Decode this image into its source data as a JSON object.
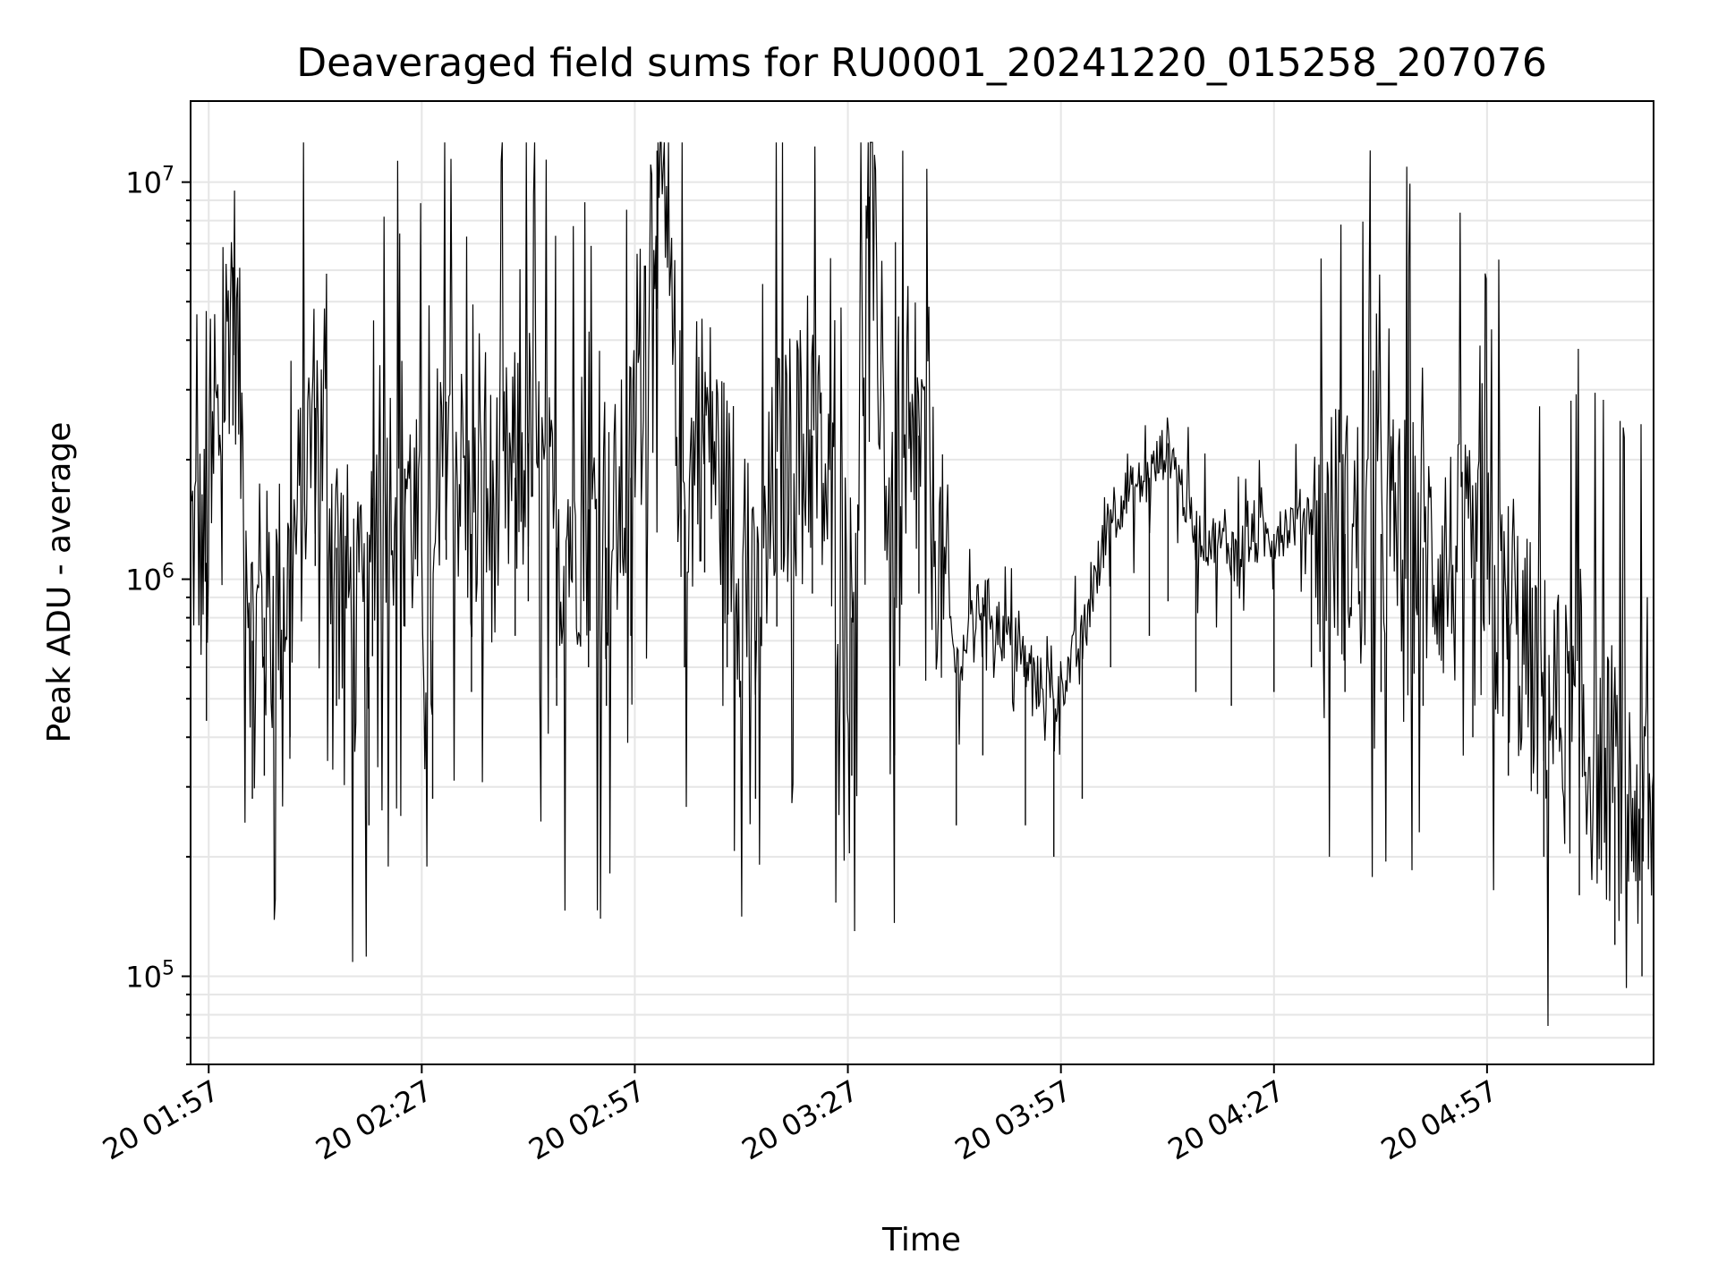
{
  "chart_data": {
    "type": "line",
    "title": "Deaveraged field sums for RU0001_20241220_015258_207076",
    "xlabel": "Time",
    "ylabel": "Peak ADU - average",
    "yscale": "log",
    "ylim": [
      60000,
      16000000
    ],
    "xlim": [
      "2024-12-20 01:54:27",
      "2024-12-20 05:20:27"
    ],
    "x_ticks": [
      "2024-12-20 01:57",
      "2024-12-20 02:27",
      "2024-12-20 02:57",
      "2024-12-20 03:27",
      "2024-12-20 03:57",
      "2024-12-20 04:27",
      "2024-12-20 04:57"
    ],
    "x_tick_labels": [
      "20 01:57",
      "20 02:27",
      "20 02:57",
      "20 03:27",
      "20 03:57",
      "20 04:27",
      "20 04:57"
    ],
    "y_ticks": [
      100000,
      1000000,
      10000000
    ],
    "y_tick_labels": [
      {
        "base": "10",
        "exp": "5"
      },
      {
        "base": "10",
        "exp": "6"
      },
      {
        "base": "10",
        "exp": "7"
      }
    ],
    "grid": true,
    "line_color": "#000000",
    "series": [
      {
        "x": [
          "2024-12-20 01:54:27",
          "2024-12-20 01:56:41",
          "2024-12-20 02:00:25",
          "2024-12-20 02:03:09",
          "2024-12-20 02:04:50",
          "2024-12-20 02:08:27",
          "2024-12-20 02:12:00",
          "2024-12-20 02:15:00",
          "2024-12-20 02:19:34",
          "2024-12-20 02:20:04",
          "2024-12-20 02:24:37",
          "2024-12-20 02:28:32",
          "2024-12-20 02:30:27",
          "2024-12-20 02:34:00",
          "2024-12-20 02:40:09",
          "2024-12-20 02:42:00",
          "2024-12-20 02:46:00",
          "2024-12-20 02:50:29",
          "2024-12-20 02:53:00",
          "2024-12-20 02:56:27",
          "2024-12-20 03:00:08",
          "2024-12-20 03:04:00",
          "2024-12-20 03:06:50",
          "2024-12-20 03:10:00",
          "2024-12-20 03:14:00",
          "2024-12-20 03:17:00",
          "2024-12-20 03:22:00",
          "2024-12-20 03:27:33",
          "2024-12-20 03:30:02",
          "2024-12-20 03:33:35",
          "2024-12-20 03:37:00",
          "2024-12-20 03:42:16",
          "2024-12-20 03:46:00",
          "2024-12-20 03:52:00",
          "2024-12-20 03:56:00",
          "2024-12-20 04:00:00",
          "2024-12-20 04:04:00",
          "2024-12-20 04:09:27",
          "2024-12-20 04:12:05",
          "2024-12-20 04:16:00",
          "2024-12-20 04:21:00",
          "2024-12-20 04:27:00",
          "2024-12-20 04:32:16",
          "2024-12-20 04:37:00",
          "2024-12-20 04:42:05",
          "2024-12-20 04:48:00",
          "2024-12-20 04:55:00",
          "2024-12-20 05:00:00",
          "2024-12-20 05:05:00",
          "2024-12-20 05:10:00",
          "2024-12-20 05:15:00",
          "2024-12-20 05:18:49"
        ],
        "y": [
          1300000,
          1100000,
          6100000,
          700000,
          800000,
          1000000,
          2700000,
          1200000,
          600000,
          1600000,
          1900000,
          700000,
          2800000,
          1300000,
          1800000,
          2200000,
          1200000,
          1500000,
          1200000,
          1800000,
          12000000,
          1500000,
          2600000,
          1500000,
          700000,
          1900000,
          2300000,
          800000,
          9200000,
          900000,
          2300000,
          600000,
          900000,
          600000,
          500000,
          700000,
          1500000,
          1800000,
          2200000,
          1300000,
          1200000,
          1300000,
          1500000,
          1300000,
          1300000,
          1200000,
          1000000,
          800000,
          500000,
          400000,
          300000,
          250000
        ]
      }
    ]
  }
}
